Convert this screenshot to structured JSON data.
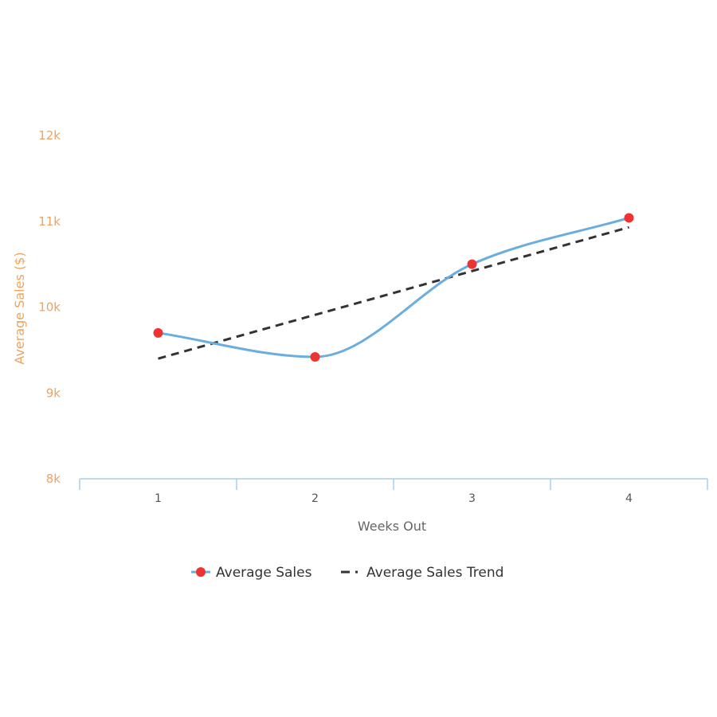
{
  "chart_data": {
    "type": "line",
    "categories": [
      "1",
      "2",
      "3",
      "4"
    ],
    "xlabel": "Weeks Out",
    "ylabel": "Average Sales ($)",
    "ylim": [
      8000,
      12000
    ],
    "yticks": [
      8000,
      9000,
      10000,
      11000,
      12000
    ],
    "ytick_labels": [
      "8k",
      "9k",
      "10k",
      "11k",
      "12k"
    ],
    "grid": false,
    "legend": "bottom-center",
    "series": [
      {
        "name": "Average Sales",
        "values": [
          9700,
          9420,
          10500,
          11040
        ],
        "style": "smooth-line-with-markers"
      },
      {
        "name": "Average Sales Trend",
        "values": [
          9400,
          9910,
          10420,
          10930
        ],
        "style": "dashed"
      }
    ]
  },
  "colors": {
    "line": "#6aaddf",
    "marker": "#ee3333",
    "trend": "#333333",
    "axis": "#a9cde6",
    "yaxis_text": "#f0a35c"
  }
}
